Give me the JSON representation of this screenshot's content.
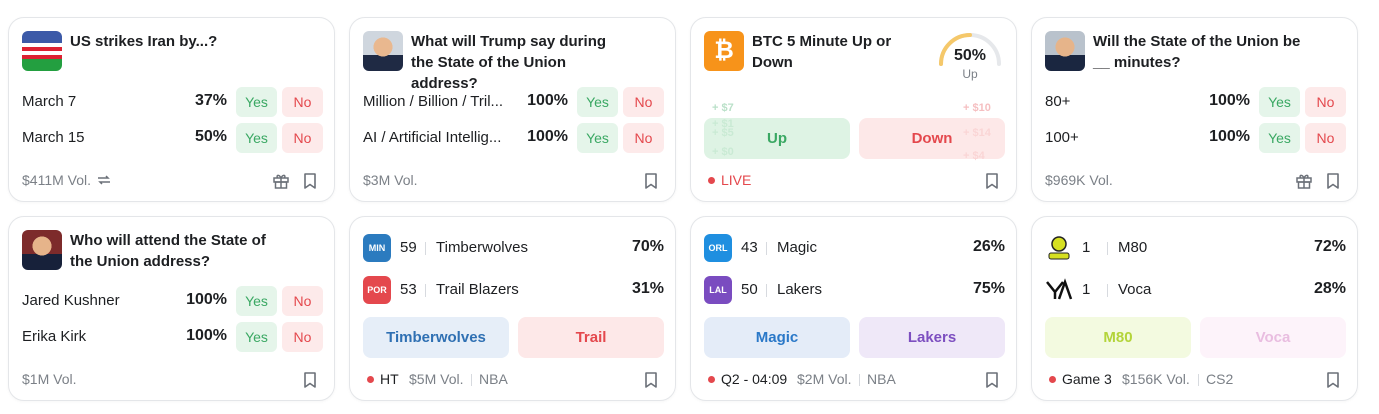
{
  "cards": [
    {
      "title": "US strikes Iran by...?",
      "outcomes": [
        {
          "label": "March 7",
          "chance": "37%",
          "yes": "Yes",
          "no": "No"
        },
        {
          "label": "March 15",
          "chance": "50%",
          "yes": "Yes",
          "no": "No"
        }
      ],
      "volume": "$411M Vol."
    },
    {
      "title": "What will Trump say during the State of the Union address?",
      "outcomes": [
        {
          "label": "Million / Billion / Tril...",
          "chance": "100%",
          "yes": "Yes",
          "no": "No"
        },
        {
          "label": "AI / Artificial Intellig...",
          "chance": "100%",
          "yes": "Yes",
          "no": "No"
        }
      ],
      "volume": "$3M Vol."
    },
    {
      "title": "BTC 5 Minute Up or Down",
      "gauge": {
        "value": "50%",
        "label": "Up"
      },
      "buttons": [
        "Up",
        "Down"
      ],
      "up_gains": [
        "+ $7",
        "+ $1",
        "+ $5",
        "+ $0"
      ],
      "down_gains": [
        "+ $10",
        "+ $14",
        "+ $4"
      ],
      "status": "LIVE"
    },
    {
      "title": "Will the State of the Union be __ minutes?",
      "outcomes": [
        {
          "label": "80+",
          "chance": "100%",
          "yes": "Yes",
          "no": "No"
        },
        {
          "label": "100+",
          "chance": "100%",
          "yes": "Yes",
          "no": "No"
        }
      ],
      "volume": "$969K Vol."
    },
    {
      "title": "Who will attend the State of the Union address?",
      "outcomes": [
        {
          "label": "Jared Kushner",
          "chance": "100%",
          "yes": "Yes",
          "no": "No"
        },
        {
          "label": "Erika Kirk",
          "chance": "100%",
          "yes": "Yes",
          "no": "No"
        }
      ],
      "volume": "$1M Vol."
    },
    {
      "teams": [
        {
          "badge": "MIN",
          "score": "59",
          "name": "Timberwolves",
          "chance": "70%"
        },
        {
          "badge": "POR",
          "score": "53",
          "name": "Trail Blazers",
          "chance": "31%"
        }
      ],
      "buttons": [
        "Timberwolves",
        "Trail"
      ],
      "status": "HT",
      "volume": "$5M Vol.",
      "league": "NBA"
    },
    {
      "teams": [
        {
          "badge": "ORL",
          "score": "43",
          "name": "Magic",
          "chance": "26%"
        },
        {
          "badge": "LAL",
          "score": "50",
          "name": "Lakers",
          "chance": "75%"
        }
      ],
      "buttons": [
        "Magic",
        "Lakers"
      ],
      "status": "Q2 - 04:09",
      "volume": "$2M Vol.",
      "league": "NBA"
    },
    {
      "teams": [
        {
          "score": "1",
          "name": "M80",
          "chance": "72%"
        },
        {
          "score": "1",
          "name": "Voca",
          "chance": "28%"
        }
      ],
      "buttons": [
        "M80",
        "Voca"
      ],
      "status": "Game 3",
      "volume": "$156K Vol.",
      "league": "CS2"
    }
  ]
}
